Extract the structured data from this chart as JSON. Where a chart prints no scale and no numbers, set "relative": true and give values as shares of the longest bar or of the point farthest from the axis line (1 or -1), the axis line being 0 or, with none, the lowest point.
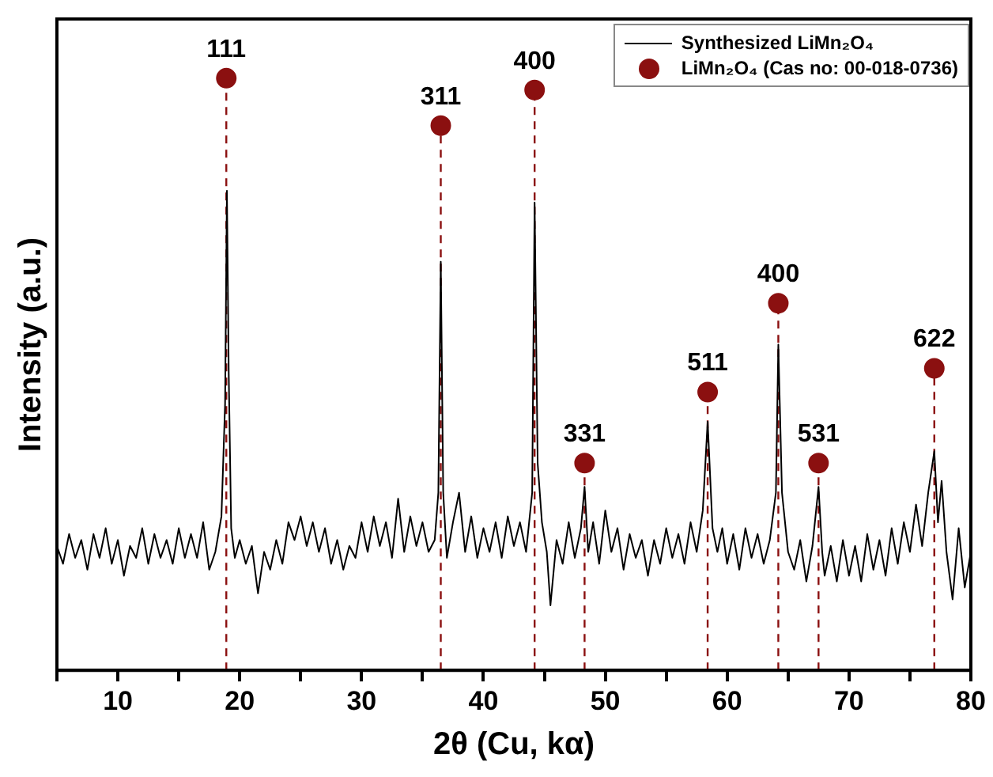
{
  "chart_data": {
    "type": "line",
    "relative": true,
    "xlabel": "2θ (Cu, kα)",
    "ylabel": "Intensity (a.u.)",
    "xlim": [
      5,
      80
    ],
    "xticks": [
      {
        "value": 5,
        "label": null
      },
      10,
      {
        "value": 15,
        "label": null
      },
      20,
      {
        "value": 25,
        "label": null
      },
      30,
      {
        "value": 35,
        "label": null
      },
      40,
      {
        "value": 45,
        "label": null
      },
      50,
      {
        "value": 55,
        "label": null
      },
      60,
      {
        "value": 65,
        "label": null
      },
      70,
      {
        "value": 75,
        "label": null
      },
      80
    ],
    "grid": false,
    "legend": "top right",
    "tick_labels": "x",
    "series": [
      {
        "name": "Synthesized LiMn₂O₄",
        "color": "#000000",
        "marker": "none",
        "line_style": "solid",
        "x": [
          5,
          5.5,
          6,
          6.5,
          7,
          7.5,
          8,
          8.5,
          9,
          9.5,
          10,
          10.5,
          11,
          11.5,
          12,
          12.5,
          13,
          13.5,
          14,
          14.5,
          15,
          15.5,
          16,
          16.5,
          17,
          17.5,
          18,
          18.5,
          18.8,
          18.95,
          19.1,
          19.3,
          19.6,
          20,
          20.5,
          21,
          21.5,
          22,
          22.5,
          23,
          23.5,
          24,
          24.5,
          25,
          25.5,
          26,
          26.5,
          27,
          27.5,
          28,
          28.5,
          29,
          29.5,
          30,
          30.5,
          31,
          31.5,
          32,
          32.5,
          33,
          33.5,
          34,
          34.5,
          35,
          35.5,
          36,
          36.3,
          36.5,
          36.7,
          37,
          37.5,
          38,
          38.5,
          39,
          39.5,
          40,
          40.5,
          41,
          41.5,
          42,
          42.5,
          43,
          43.5,
          44,
          44.2,
          44.45,
          44.8,
          45.2,
          45.5,
          46,
          46.5,
          47,
          47.5,
          48,
          48.3,
          48.6,
          49,
          49.5,
          50,
          50.5,
          51,
          51.5,
          52,
          52.5,
          53,
          53.5,
          54,
          54.5,
          55,
          55.5,
          56,
          56.5,
          57,
          57.5,
          58,
          58.4,
          58.8,
          59.2,
          59.6,
          60,
          60.5,
          61,
          61.5,
          62,
          62.5,
          63,
          63.5,
          64,
          64.2,
          64.5,
          65,
          65.5,
          66,
          66.5,
          67,
          67.5,
          67.8,
          68,
          68.5,
          69,
          69.5,
          70,
          70.5,
          71,
          71.5,
          72,
          72.5,
          73,
          73.5,
          74,
          74.5,
          75,
          75.5,
          76,
          76.5,
          77,
          77.3,
          77.6,
          78,
          78.5,
          79,
          79.5,
          80
        ],
        "values": [
          0.21,
          0.18,
          0.23,
          0.19,
          0.22,
          0.17,
          0.23,
          0.19,
          0.24,
          0.18,
          0.22,
          0.16,
          0.21,
          0.19,
          0.24,
          0.18,
          0.23,
          0.19,
          0.22,
          0.18,
          0.24,
          0.19,
          0.23,
          0.19,
          0.25,
          0.17,
          0.2,
          0.26,
          0.45,
          0.81,
          0.5,
          0.24,
          0.19,
          0.22,
          0.18,
          0.21,
          0.13,
          0.2,
          0.17,
          0.22,
          0.18,
          0.25,
          0.22,
          0.26,
          0.21,
          0.25,
          0.2,
          0.24,
          0.18,
          0.22,
          0.17,
          0.21,
          0.19,
          0.25,
          0.2,
          0.26,
          0.21,
          0.25,
          0.19,
          0.29,
          0.2,
          0.26,
          0.21,
          0.25,
          0.2,
          0.22,
          0.3,
          0.69,
          0.3,
          0.19,
          0.25,
          0.3,
          0.2,
          0.26,
          0.19,
          0.24,
          0.2,
          0.25,
          0.19,
          0.26,
          0.21,
          0.25,
          0.2,
          0.3,
          0.79,
          0.35,
          0.25,
          0.2,
          0.11,
          0.22,
          0.18,
          0.25,
          0.19,
          0.24,
          0.31,
          0.2,
          0.25,
          0.18,
          0.27,
          0.2,
          0.24,
          0.17,
          0.23,
          0.19,
          0.22,
          0.16,
          0.22,
          0.18,
          0.24,
          0.19,
          0.23,
          0.18,
          0.25,
          0.2,
          0.27,
          0.42,
          0.24,
          0.2,
          0.24,
          0.18,
          0.23,
          0.17,
          0.24,
          0.19,
          0.23,
          0.18,
          0.22,
          0.3,
          0.55,
          0.3,
          0.2,
          0.17,
          0.22,
          0.15,
          0.21,
          0.31,
          0.2,
          0.16,
          0.21,
          0.15,
          0.22,
          0.16,
          0.21,
          0.15,
          0.23,
          0.17,
          0.22,
          0.16,
          0.24,
          0.18,
          0.25,
          0.2,
          0.28,
          0.21,
          0.3,
          0.37,
          0.25,
          0.32,
          0.2,
          0.12,
          0.24,
          0.14,
          0.2
        ]
      },
      {
        "name": "LiMn₂O₄ (Cas no: 00-018-0736)",
        "type": "scatter",
        "color": "#8b1010",
        "marker": "circle",
        "x": [
          18.9,
          36.5,
          44.2,
          48.3,
          58.4,
          64.2,
          67.5,
          77.0
        ],
        "values": [
          1,
          0.92,
          0.98,
          0.35,
          0.47,
          0.62,
          0.35,
          0.51
        ]
      }
    ],
    "ref_lines": [
      {
        "axis": "x",
        "value": 18.9,
        "color": "#8b1010",
        "line_style": "dashed"
      },
      {
        "axis": "x",
        "value": 36.5,
        "color": "#8b1010",
        "line_style": "dashed"
      },
      {
        "axis": "x",
        "value": 44.2,
        "color": "#8b1010",
        "line_style": "dashed"
      },
      {
        "axis": "x",
        "value": 48.3,
        "color": "#8b1010",
        "line_style": "dashed"
      },
      {
        "axis": "x",
        "value": 58.4,
        "color": "#8b1010",
        "line_style": "dashed"
      },
      {
        "axis": "x",
        "value": 64.2,
        "color": "#8b1010",
        "line_style": "dashed"
      },
      {
        "axis": "x",
        "value": 67.5,
        "color": "#8b1010",
        "line_style": "dashed"
      },
      {
        "axis": "x",
        "value": 77.0,
        "color": "#8b1010",
        "line_style": "dashed"
      }
    ],
    "annotations": [
      {
        "text": "111",
        "x": 18.9,
        "y": 1
      },
      {
        "text": "311",
        "x": 36.5,
        "y": 0.92
      },
      {
        "text": "400",
        "x": 44.2,
        "y": 0.98
      },
      {
        "text": "331",
        "x": 48.3,
        "y": 0.35
      },
      {
        "text": "511",
        "x": 58.4,
        "y": 0.47
      },
      {
        "text": "400",
        "x": 64.2,
        "y": 0.62
      },
      {
        "text": "531",
        "x": 67.5,
        "y": 0.35
      },
      {
        "text": "622",
        "x": 77.0,
        "y": 0.51
      }
    ]
  }
}
